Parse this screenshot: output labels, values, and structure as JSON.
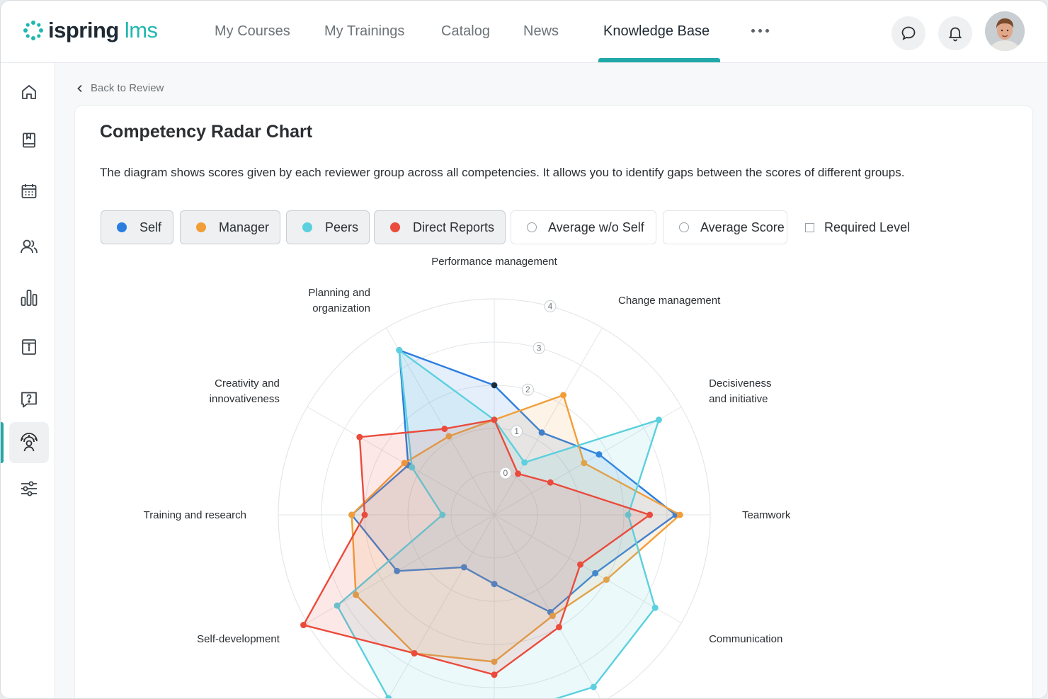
{
  "app": {
    "logo_text": "ispring",
    "logo_suffix": "lms"
  },
  "nav": {
    "items": [
      {
        "label": "My Courses"
      },
      {
        "label": "My Trainings"
      },
      {
        "label": "Catalog"
      },
      {
        "label": "News"
      },
      {
        "label": "Knowledge Base",
        "active": true
      }
    ]
  },
  "header_icons": [
    "more-icon",
    "chat-icon",
    "bell-icon",
    "avatar"
  ],
  "sidebar": {
    "items": [
      {
        "icon": "home-icon"
      },
      {
        "icon": "book-icon"
      },
      {
        "icon": "calendar-icon"
      },
      {
        "icon": "users-icon"
      },
      {
        "icon": "bar-chart-icon"
      },
      {
        "icon": "info-card-icon"
      },
      {
        "icon": "question-icon"
      },
      {
        "icon": "review-360-icon",
        "active": true
      },
      {
        "icon": "settings-sliders-icon"
      }
    ]
  },
  "page": {
    "back_label": "Back to Review",
    "title": "Competency Radar Chart",
    "description": "The diagram shows scores given by each reviewer group across all competencies. It allows you to identify gaps between the scores of different groups."
  },
  "legend": [
    {
      "label": "Self",
      "color": "#2b7de0",
      "state": "on"
    },
    {
      "label": "Manager",
      "color": "#f29e38",
      "state": "on"
    },
    {
      "label": "Peers",
      "color": "#5bd0de",
      "state": "on"
    },
    {
      "label": "Direct Reports",
      "color": "#ea4b3c",
      "state": "on"
    },
    {
      "label": "Average w/o Self",
      "state": "off"
    },
    {
      "label": "Average Score",
      "state": "off"
    },
    {
      "label": "Required Level",
      "state": "off"
    }
  ],
  "chart_data": {
    "type": "radar",
    "axes": [
      "Performance management",
      "Change management",
      "Decisiveness and initiative",
      "Teamwork",
      "Communication",
      "",
      "",
      "",
      "Self-development",
      "Training and research",
      "Creativity and innovativeness",
      "Planning and organization"
    ],
    "axis_labels_lines": [
      [
        "Performance management"
      ],
      [
        "Change management"
      ],
      [
        "Decisiveness",
        "and initiative"
      ],
      [
        "Teamwork"
      ],
      [
        "Communication"
      ],
      [],
      [],
      [],
      [
        "Self-development"
      ],
      [
        "Training and research"
      ],
      [
        "Creativity and",
        "innovativeness"
      ],
      [
        "Planning and",
        "organization"
      ]
    ],
    "ticks": [
      0,
      1,
      2,
      3,
      4
    ],
    "rlim": [
      -1,
      4
    ],
    "series": [
      {
        "name": "Self",
        "color": "#2b7de0",
        "values": [
          2,
          1.2,
          1.8,
          3.2,
          1.7,
          1.6,
          0.6,
          0.4,
          1.6,
          2.3,
          1.3,
          3.4
        ]
      },
      {
        "name": "Manager",
        "color": "#f29e38",
        "values": [
          1.2,
          2.2,
          1.4,
          3.3,
          2,
          1.7,
          2.4,
          2.7,
          2.7,
          2.3,
          1.4,
          1.1
        ]
      },
      {
        "name": "Peers",
        "color": "#5bd0de",
        "values": [
          1.2,
          0.4,
          3.4,
          2.1,
          3.3,
          3.6,
          3.7,
          3.9,
          3.2,
          0.2,
          1.2,
          3.4
        ]
      },
      {
        "name": "Direct Reports",
        "color": "#ea4b3c",
        "values": [
          1.2,
          0.1,
          0.5,
          2.6,
          1.3,
          2,
          2.7,
          2.7,
          4.1,
          2,
          2.6,
          1.3
        ]
      }
    ]
  }
}
